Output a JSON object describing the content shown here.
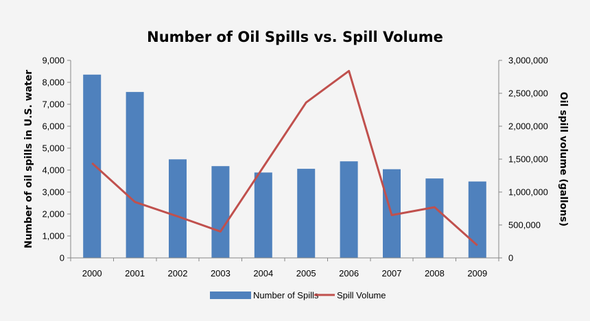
{
  "chart_data": {
    "type": "bar+line",
    "title": "Number of Oil Spills vs. Spill Volume",
    "categories": [
      "2000",
      "2001",
      "2002",
      "2003",
      "2004",
      "2005",
      "2006",
      "2007",
      "2008",
      "2009"
    ],
    "series": [
      {
        "name": "Number of Spills",
        "type": "bar",
        "axis": "left",
        "color": "#4f81bd",
        "values": [
          8350,
          7560,
          4490,
          4180,
          3890,
          4060,
          4400,
          4040,
          3620,
          3480
        ]
      },
      {
        "name": "Spill Volume",
        "type": "line",
        "axis": "right",
        "color": "#c0504d",
        "values": [
          1440000,
          850000,
          630000,
          400000,
          1380000,
          2360000,
          2840000,
          650000,
          770000,
          190000
        ]
      }
    ],
    "xlabel": "",
    "ylabel_left": "Number of oil spills in U.S. water",
    "ylabel_right": "Oil spill volume (gallons)",
    "ylim_left": [
      0,
      9000
    ],
    "ylim_right": [
      0,
      3000000
    ],
    "yticks_left": [
      "0",
      "1,000",
      "2,000",
      "3,000",
      "4,000",
      "5,000",
      "6,000",
      "7,000",
      "8,000",
      "9,000"
    ],
    "yticks_right": [
      "0",
      "500,000",
      "1,000,000",
      "1,500,000",
      "2,000,000",
      "2,500,000",
      "3,000,000"
    ],
    "grid": false,
    "legend_position": "bottom"
  }
}
